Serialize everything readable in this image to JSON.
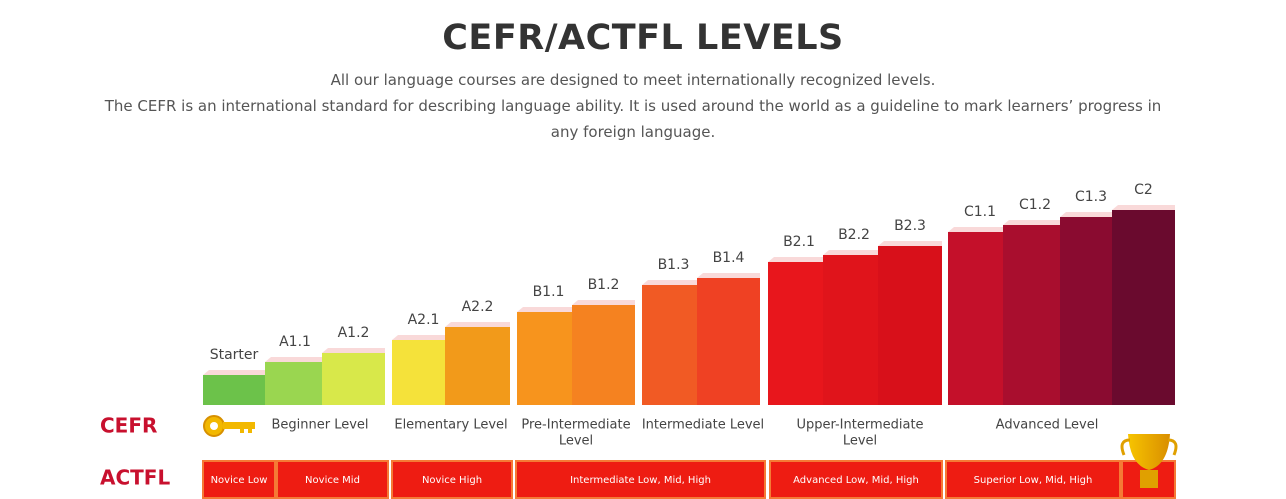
{
  "header": {
    "title": "CEFR/ACTFL LEVELS",
    "lines": [
      "All our language courses are designed to meet internationally recognized levels.",
      "The CEFR is an international standard for describing language ability. It is used around the world as a guideline to mark learners’ progress in any foreign language."
    ]
  },
  "diagram": {
    "row_labels": [
      "CEFR",
      "ACTFL"
    ],
    "levels": [
      "Starter",
      "A1.1",
      "A1.2",
      "A2.1",
      "A2.2",
      "B1.1",
      "B1.2",
      "B1.3",
      "B1.4",
      "B2.1",
      "B2.2",
      "B2.3",
      "C1.1",
      "C1.2",
      "C1.3",
      "C2"
    ],
    "groups": [
      [
        "Beginner Level"
      ],
      [
        "Elementary Level"
      ],
      [
        "Pre-Intermediate",
        "Level"
      ],
      [
        "Intermediate Level"
      ],
      [
        "Upper-Intermediate",
        "Level"
      ],
      [
        "Advanced Level"
      ]
    ],
    "actfl": [
      "Novice Low",
      "Novice Mid",
      "Novice High",
      "Intermediate Low, Mid, High",
      "Advanced Low, Mid, High",
      "Superior Low, Mid, High"
    ]
  }
}
